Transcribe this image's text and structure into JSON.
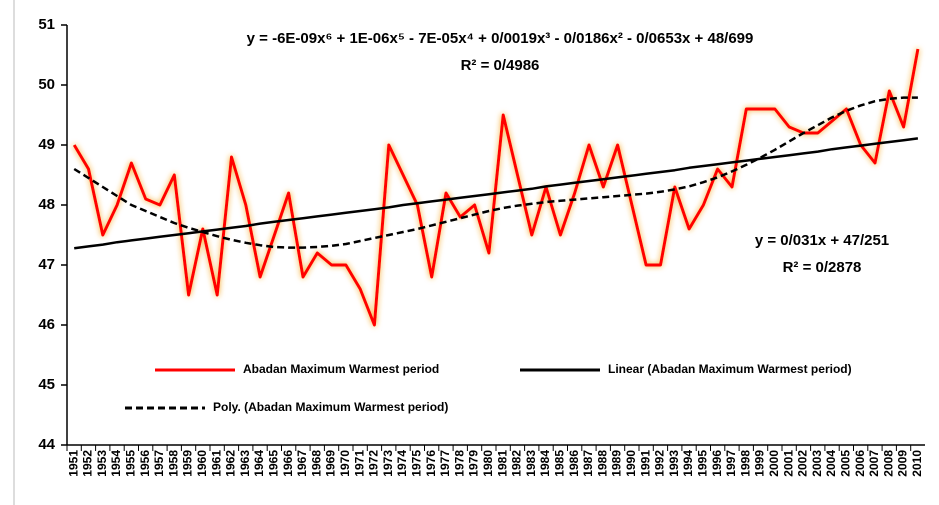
{
  "chart_data": {
    "type": "line",
    "categories": [
      "1951",
      "1952",
      "1953",
      "1954",
      "1955",
      "1956",
      "1957",
      "1958",
      "1959",
      "1960",
      "1961",
      "1962",
      "1963",
      "1964",
      "1965",
      "1966",
      "1967",
      "1968",
      "1969",
      "1970",
      "1971",
      "1972",
      "1973",
      "1974",
      "1975",
      "1976",
      "1977",
      "1978",
      "1979",
      "1980",
      "1981",
      "1982",
      "1983",
      "1984",
      "1985",
      "1986",
      "1987",
      "1988",
      "1989",
      "1990",
      "1991",
      "1992",
      "1993",
      "1994",
      "1995",
      "1996",
      "1997",
      "1998",
      "1999",
      "2000",
      "2001",
      "2002",
      "2003",
      "2004",
      "2005",
      "2006",
      "2007",
      "2008",
      "2009",
      "2010"
    ],
    "series": [
      {
        "name": "Abadan Maximum Warmest period",
        "color": "#ff0000",
        "values": [
          49.0,
          48.6,
          47.5,
          48.0,
          48.7,
          48.1,
          48.0,
          48.5,
          46.5,
          47.6,
          46.5,
          48.8,
          48.0,
          46.8,
          47.5,
          48.2,
          46.8,
          47.2,
          47.0,
          47.0,
          46.6,
          46.0,
          49.0,
          48.5,
          48.0,
          46.8,
          48.2,
          47.8,
          48.0,
          47.2,
          49.5,
          48.5,
          47.5,
          48.3,
          47.5,
          48.2,
          49.0,
          48.3,
          49.0,
          48.0,
          47.0,
          47.0,
          48.3,
          47.6,
          48.0,
          48.6,
          48.3,
          49.6,
          49.6,
          49.6,
          49.3,
          49.2,
          49.2,
          49.4,
          49.6,
          49.0,
          48.7,
          49.9,
          49.3,
          50.6
        ]
      },
      {
        "name": "Linear (Abadan Maximum Warmest period)",
        "color": "#000000",
        "values": [
          47.28,
          47.31,
          47.34,
          47.38,
          47.41,
          47.44,
          47.47,
          47.5,
          47.53,
          47.56,
          47.59,
          47.62,
          47.65,
          47.69,
          47.72,
          47.75,
          47.78,
          47.81,
          47.84,
          47.87,
          47.9,
          47.93,
          47.96,
          48.0,
          48.03,
          48.06,
          48.09,
          48.12,
          48.15,
          48.18,
          48.21,
          48.24,
          48.27,
          48.31,
          48.34,
          48.37,
          48.4,
          48.43,
          48.46,
          48.49,
          48.52,
          48.55,
          48.58,
          48.62,
          48.65,
          48.68,
          48.71,
          48.74,
          48.77,
          48.8,
          48.83,
          48.86,
          48.89,
          48.93,
          48.96,
          48.99,
          49.02,
          49.05,
          49.08,
          49.11
        ]
      },
      {
        "name": "Poly. (Abadan Maximum Warmest period)",
        "color": "#000000",
        "dashed": true,
        "values": [
          48.6,
          48.45,
          48.3,
          48.15,
          48.0,
          47.9,
          47.8,
          47.7,
          47.62,
          47.55,
          47.48,
          47.42,
          47.37,
          47.33,
          47.3,
          47.29,
          47.29,
          47.3,
          47.32,
          47.35,
          47.4,
          47.45,
          47.5,
          47.55,
          47.6,
          47.66,
          47.72,
          47.78,
          47.84,
          47.9,
          47.95,
          47.99,
          48.02,
          48.05,
          48.07,
          48.09,
          48.11,
          48.13,
          48.15,
          48.17,
          48.19,
          48.22,
          48.26,
          48.31,
          48.38,
          48.46,
          48.56,
          48.67,
          48.79,
          48.92,
          49.06,
          49.2,
          49.33,
          49.46,
          49.57,
          49.66,
          49.73,
          49.77,
          49.79,
          49.79
        ]
      }
    ],
    "annotations": [
      "y = -6E-09x⁶ + 1E-06x⁵ - 7E-05x⁴ + 0/0019x³ - 0/0186x² - 0/0653x + 48/699",
      "R² = 0/4986",
      "y = 0/031x + 47/251",
      "R² = 0/2878"
    ],
    "ylim": [
      44,
      51
    ],
    "yticks": [
      44,
      45,
      46,
      47,
      48,
      49,
      50,
      51
    ]
  }
}
